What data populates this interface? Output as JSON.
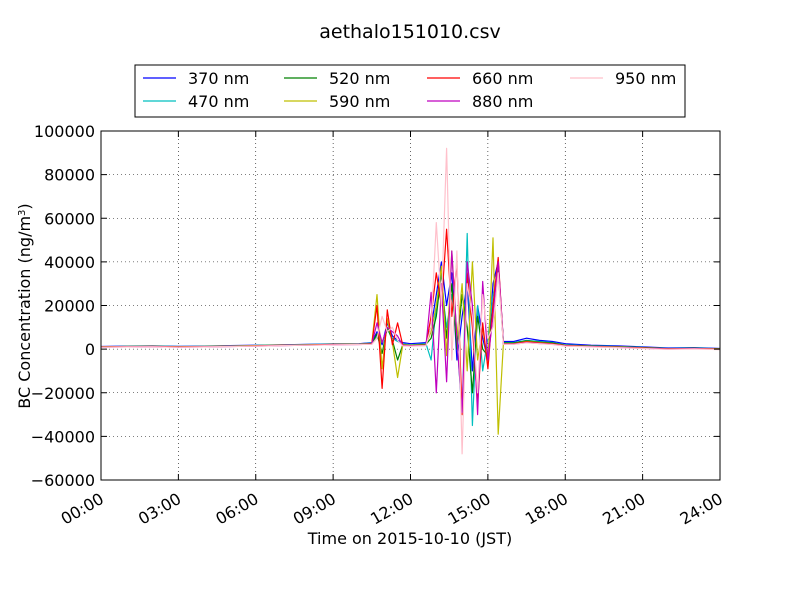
{
  "chart_data": {
    "type": "line",
    "title": "aethalo151010.csv",
    "xlabel": "Time on 2015-10-10 (JST)",
    "ylabel": "BC Concentration (ng/m",
    "ylabel_sup": "3",
    "ylabel_close": ")",
    "xlim": [
      0,
      24
    ],
    "ylim": [
      -60000,
      100000
    ],
    "x_ticks": [
      0,
      3,
      6,
      9,
      12,
      15,
      18,
      21,
      24
    ],
    "x_tick_labels": [
      "00:00",
      "03:00",
      "06:00",
      "09:00",
      "12:00",
      "15:00",
      "18:00",
      "21:00",
      "24:00"
    ],
    "y_ticks": [
      -60000,
      -40000,
      -20000,
      0,
      20000,
      40000,
      60000,
      80000,
      100000
    ],
    "y_tick_labels": [
      "−60000",
      "−40000",
      "−20000",
      "0",
      "20000",
      "40000",
      "60000",
      "80000",
      "100000"
    ],
    "grid": true,
    "legend_position": "top-center",
    "series": [
      {
        "name": "370 nm",
        "color": "#0000ff",
        "x": [
          0,
          1,
          2,
          3,
          4,
          5,
          6,
          7,
          8,
          9,
          10,
          10.5,
          10.7,
          10.9,
          11.1,
          11.3,
          11.5,
          11.7,
          12,
          12.6,
          12.8,
          13,
          13.2,
          13.4,
          13.6,
          13.8,
          14,
          14.2,
          14.4,
          14.6,
          14.8,
          15,
          15.2,
          15.4,
          15.6,
          16,
          16.5,
          17,
          17.5,
          18,
          19,
          20,
          21,
          22,
          23,
          24
        ],
        "y": [
          1200,
          1400,
          1500,
          1300,
          1400,
          1600,
          1800,
          2000,
          2200,
          2400,
          2500,
          3000,
          8000,
          2000,
          12000,
          6000,
          4000,
          3000,
          2500,
          3000,
          10000,
          25000,
          40000,
          20000,
          35000,
          -5000,
          15000,
          30000,
          -10000,
          20000,
          5000,
          -5000,
          30000,
          40000,
          3500,
          3500,
          5000,
          4000,
          3500,
          2500,
          1800,
          1500,
          1000,
          500,
          700,
          300
        ]
      },
      {
        "name": "470 nm",
        "color": "#00bfbf",
        "x": [
          0,
          1,
          2,
          3,
          4,
          5,
          6,
          7,
          8,
          9,
          10,
          10.5,
          10.7,
          10.9,
          11.1,
          11.3,
          11.5,
          11.7,
          12,
          12.6,
          12.8,
          13,
          13.2,
          13.4,
          13.6,
          13.8,
          14,
          14.2,
          14.4,
          14.6,
          14.8,
          15,
          15.2,
          15.4,
          15.6,
          16,
          16.5,
          17,
          17.5,
          18,
          19,
          20,
          21,
          22,
          23,
          24
        ],
        "y": [
          1100,
          1300,
          1400,
          1200,
          1300,
          1500,
          1700,
          1900,
          2100,
          2300,
          2400,
          2800,
          6000,
          3000,
          9000,
          5000,
          3500,
          2500,
          2000,
          2500,
          -5000,
          20000,
          30000,
          10000,
          25000,
          5000,
          -30000,
          53000,
          -35000,
          20000,
          -10000,
          5000,
          25000,
          35000,
          3000,
          3000,
          4000,
          3500,
          3000,
          2000,
          1500,
          1200,
          800,
          300,
          500,
          200
        ]
      },
      {
        "name": "520 nm",
        "color": "#008000",
        "x": [
          0,
          1,
          2,
          3,
          4,
          5,
          6,
          7,
          8,
          9,
          10,
          10.5,
          10.7,
          10.9,
          11.1,
          11.3,
          11.5,
          11.7,
          12,
          12.6,
          12.8,
          13,
          13.2,
          13.4,
          13.6,
          13.8,
          14,
          14.2,
          14.4,
          14.6,
          14.8,
          15,
          15.2,
          15.4,
          15.6,
          16,
          16.5,
          17,
          17.5,
          18,
          19,
          20,
          21,
          22,
          23,
          24
        ],
        "y": [
          1000,
          1200,
          1300,
          1100,
          1200,
          1400,
          1600,
          1800,
          2000,
          2200,
          2300,
          2600,
          7000,
          -2000,
          10000,
          4000,
          -5000,
          2000,
          1800,
          2200,
          5000,
          15000,
          35000,
          5000,
          30000,
          0,
          25000,
          10000,
          -20000,
          15000,
          0,
          -3000,
          20000,
          38000,
          2800,
          2800,
          3800,
          3200,
          2800,
          1800,
          1400,
          1100,
          700,
          200,
          400,
          100
        ]
      },
      {
        "name": "590 nm",
        "color": "#bfbf00",
        "x": [
          0,
          1,
          2,
          3,
          4,
          5,
          6,
          7,
          8,
          9,
          10,
          10.5,
          10.7,
          10.9,
          11.1,
          11.3,
          11.5,
          11.7,
          12,
          12.6,
          12.8,
          13,
          13.2,
          13.4,
          13.6,
          13.8,
          14,
          14.2,
          14.4,
          14.6,
          14.8,
          15,
          15.2,
          15.4,
          15.6,
          16,
          16.5,
          17,
          17.5,
          18,
          19,
          20,
          21,
          22,
          23,
          24
        ],
        "y": [
          1000,
          1200,
          1300,
          1100,
          1200,
          1400,
          1600,
          1800,
          2000,
          2200,
          2300,
          2500,
          25000,
          -9000,
          14000,
          3000,
          -13000,
          2000,
          1800,
          2000,
          8000,
          20000,
          38000,
          -3000,
          45000,
          5000,
          30000,
          -10000,
          40000,
          -5000,
          10000,
          -8000,
          51000,
          -39000,
          2500,
          2500,
          3500,
          3000,
          2500,
          1700,
          1300,
          1000,
          600,
          200,
          300,
          100
        ]
      },
      {
        "name": "660 nm",
        "color": "#ff0000",
        "x": [
          0,
          1,
          2,
          3,
          4,
          5,
          6,
          7,
          8,
          9,
          10,
          10.5,
          10.7,
          10.9,
          11.1,
          11.3,
          11.5,
          11.7,
          12,
          12.6,
          12.8,
          13,
          13.2,
          13.4,
          13.6,
          13.8,
          14,
          14.2,
          14.4,
          14.6,
          14.8,
          15,
          15.2,
          15.4,
          15.6,
          16,
          16.5,
          17,
          17.5,
          18,
          19,
          20,
          21,
          22,
          23,
          24
        ],
        "y": [
          1000,
          1100,
          1200,
          1000,
          1100,
          1300,
          1500,
          1700,
          1900,
          2100,
          2200,
          2400,
          20000,
          -18000,
          18000,
          2000,
          12000,
          1800,
          1600,
          1800,
          15000,
          35000,
          20000,
          55000,
          15000,
          40000,
          -30000,
          35000,
          10000,
          -25000,
          12000,
          -9000,
          20000,
          42000,
          2400,
          2400,
          3300,
          2800,
          2400,
          1600,
          1200,
          900,
          500,
          100,
          300,
          0
        ]
      },
      {
        "name": "880 nm",
        "color": "#bf00bf",
        "x": [
          0,
          1,
          2,
          3,
          4,
          5,
          6,
          7,
          8,
          9,
          10,
          10.5,
          10.7,
          10.9,
          11.1,
          11.3,
          11.5,
          11.7,
          12,
          12.6,
          12.8,
          13,
          13.2,
          13.4,
          13.6,
          13.8,
          14,
          14.2,
          14.4,
          14.6,
          14.8,
          15,
          15.2,
          15.4,
          15.6,
          16,
          16.5,
          17,
          17.5,
          18,
          19,
          20,
          21,
          22,
          23,
          24
        ],
        "y": [
          900,
          1000,
          1100,
          900,
          1000,
          1200,
          1400,
          1600,
          1800,
          2000,
          2100,
          2300,
          12000,
          3000,
          10000,
          8000,
          6000,
          1600,
          1500,
          1700,
          26000,
          -20000,
          30000,
          -15000,
          45000,
          5000,
          -29000,
          40000,
          20000,
          -30000,
          31000,
          -5000,
          15000,
          40000,
          2300,
          2300,
          3000,
          2600,
          2200,
          1500,
          1100,
          800,
          400,
          0,
          200,
          -100
        ]
      },
      {
        "name": "950 nm",
        "color": "#ffc0cb",
        "x": [
          0,
          1,
          2,
          3,
          4,
          5,
          6,
          7,
          8,
          9,
          10,
          10.5,
          10.7,
          10.9,
          11.1,
          11.3,
          11.5,
          11.7,
          12,
          12.6,
          12.8,
          13,
          13.2,
          13.4,
          13.6,
          13.8,
          14,
          14.2,
          14.4,
          14.6,
          14.8,
          15,
          15.2,
          15.4,
          15.6,
          16,
          16.5,
          17,
          17.5,
          18,
          19,
          20,
          21,
          22,
          23,
          24
        ],
        "y": [
          900,
          1000,
          1100,
          900,
          1000,
          1200,
          1400,
          1600,
          1800,
          2000,
          2100,
          2200,
          5000,
          15000,
          8000,
          10000,
          4000,
          1500,
          1400,
          1600,
          10000,
          58000,
          20000,
          92000,
          -5000,
          45000,
          -48000,
          30000,
          15000,
          -20000,
          25000,
          5000,
          10000,
          35000,
          2200,
          2200,
          2900,
          2500,
          2100,
          1400,
          1000,
          700,
          300,
          -100,
          100,
          -200
        ]
      }
    ]
  }
}
